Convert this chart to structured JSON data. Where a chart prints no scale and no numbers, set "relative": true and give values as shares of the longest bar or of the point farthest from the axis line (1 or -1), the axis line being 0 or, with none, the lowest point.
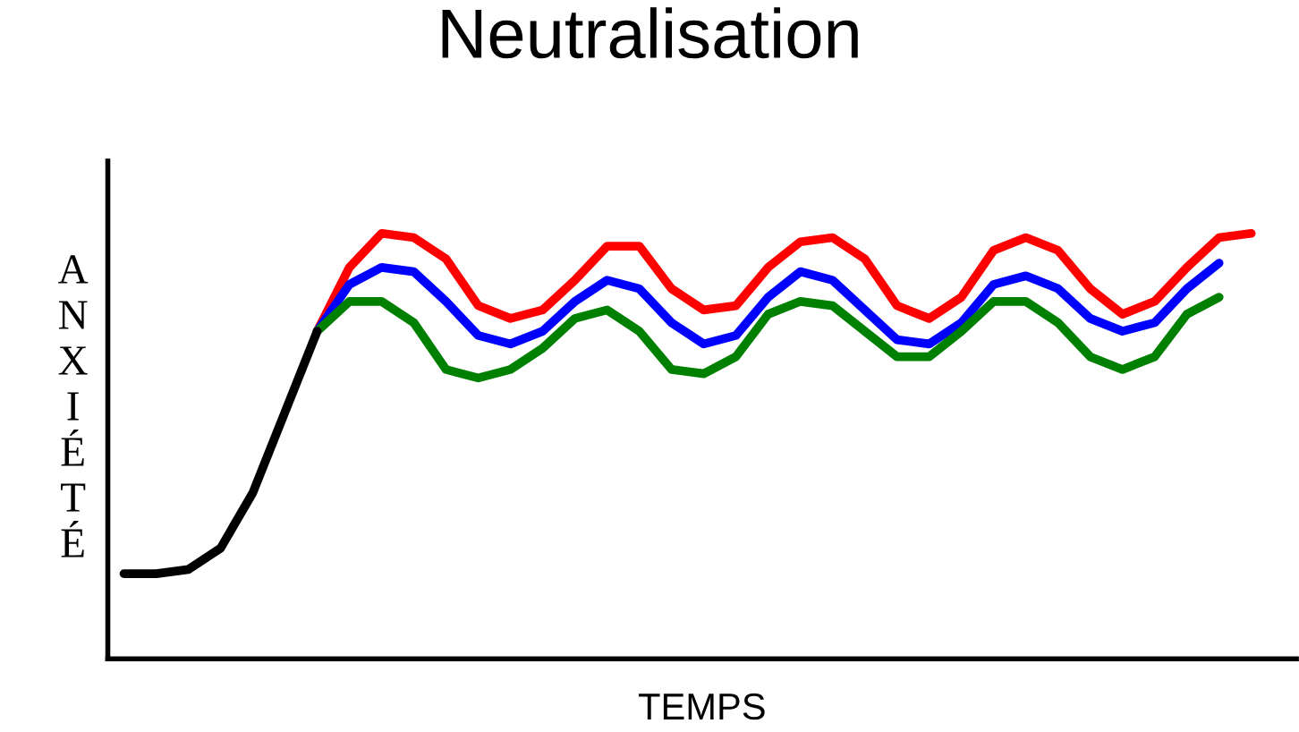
{
  "chart_data": {
    "type": "line",
    "title": "Neutralisation",
    "xlabel": "TEMPS",
    "ylabel": "ANXIÉTÉ",
    "relative": true,
    "grid": false,
    "legend": false,
    "marker": "none",
    "line_style": "solid",
    "categories": [
      null,
      null,
      null,
      null,
      null,
      null,
      null,
      null,
      null,
      null,
      null,
      null,
      null,
      null,
      null,
      null,
      null,
      null,
      null,
      null,
      null,
      null,
      null,
      null,
      null,
      null,
      null,
      null,
      null,
      null,
      null,
      null,
      null,
      null,
      null,
      null
    ],
    "series": [
      {
        "color": "#ff0000",
        "values": [
          null,
          null,
          null,
          null,
          null,
          null,
          0.77,
          0.92,
          1.0,
          0.99,
          0.94,
          0.83,
          0.8,
          0.82,
          0.89,
          0.97,
          0.97,
          0.87,
          0.82,
          0.83,
          0.92,
          0.98,
          0.99,
          0.94,
          0.83,
          0.8,
          0.85,
          0.96,
          0.99,
          0.96,
          0.87,
          0.81,
          0.84,
          0.92,
          0.99,
          1.0
        ]
      },
      {
        "color": "#0000ff",
        "values": [
          null,
          null,
          null,
          null,
          null,
          null,
          0.77,
          0.88,
          0.92,
          0.91,
          0.84,
          0.76,
          0.74,
          0.77,
          0.84,
          0.89,
          0.87,
          0.79,
          0.74,
          0.76,
          0.85,
          0.91,
          0.89,
          0.82,
          0.75,
          0.74,
          0.79,
          0.88,
          0.9,
          0.87,
          0.8,
          0.77,
          0.79,
          0.87,
          0.93,
          null
        ]
      },
      {
        "color": "#008000",
        "values": [
          null,
          null,
          null,
          null,
          null,
          null,
          0.77,
          0.84,
          0.84,
          0.79,
          0.68,
          0.66,
          0.68,
          0.73,
          0.8,
          0.82,
          0.77,
          0.68,
          0.67,
          0.71,
          0.81,
          0.84,
          0.83,
          0.77,
          0.71,
          0.71,
          0.77,
          0.84,
          0.84,
          0.79,
          0.71,
          0.68,
          0.71,
          0.81,
          0.85,
          null
        ]
      },
      {
        "color": "#000000",
        "values": [
          0.2,
          0.2,
          0.21,
          0.26,
          0.39,
          0.58,
          0.77,
          null,
          null,
          null,
          null,
          null,
          null,
          null,
          null,
          null,
          null,
          null,
          null,
          null,
          null,
          null,
          null,
          null,
          null,
          null,
          null,
          null,
          null,
          null,
          null,
          null,
          null,
          null,
          null,
          null
        ]
      }
    ]
  }
}
